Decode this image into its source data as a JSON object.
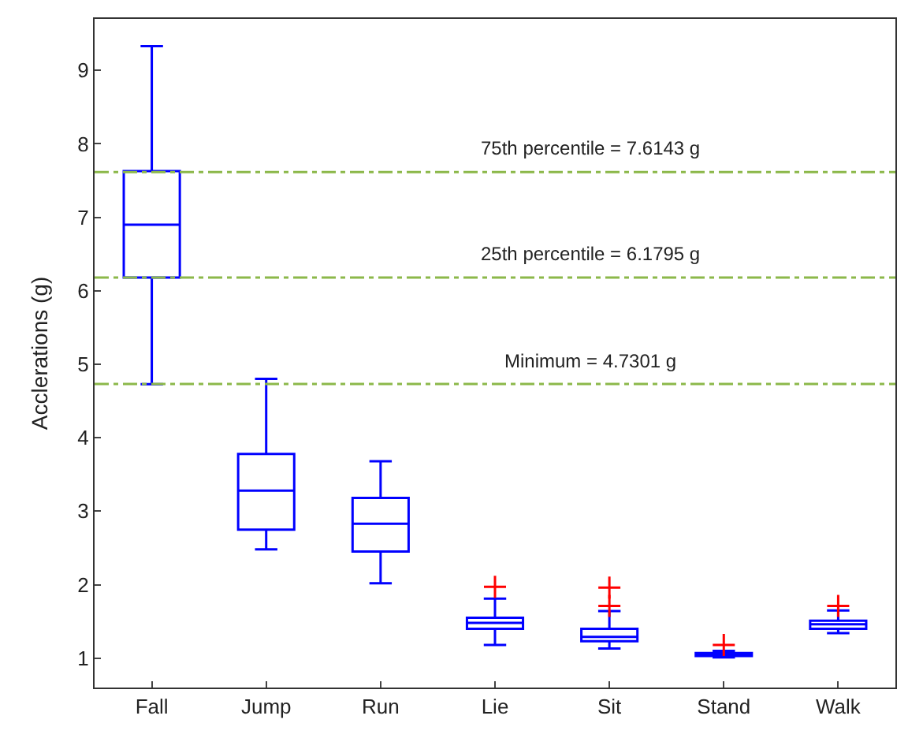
{
  "chart_data": {
    "type": "box",
    "ylabel": "Acclerations (g)",
    "categories": [
      "Fall",
      "Jump",
      "Run",
      "Lie",
      "Sit",
      "Stand",
      "Walk"
    ],
    "boxes": [
      {
        "low": 4.73,
        "q1": 6.18,
        "median": 6.9,
        "q3": 7.63,
        "high": 9.33
      },
      {
        "low": 2.48,
        "q1": 2.75,
        "median": 3.28,
        "q3": 3.78,
        "high": 4.8
      },
      {
        "low": 2.02,
        "q1": 2.45,
        "median": 2.83,
        "q3": 3.18,
        "high": 3.68
      },
      {
        "low": 1.18,
        "q1": 1.4,
        "median": 1.48,
        "q3": 1.55,
        "high": 1.81,
        "outliers": [
          1.97
        ]
      },
      {
        "low": 1.13,
        "q1": 1.23,
        "median": 1.29,
        "q3": 1.4,
        "high": 1.64,
        "outliers": [
          1.71,
          1.96
        ]
      },
      {
        "low": 1.01,
        "q1": 1.03,
        "median": 1.05,
        "q3": 1.07,
        "high": 1.1,
        "outliers": [
          1.18
        ]
      },
      {
        "low": 1.34,
        "q1": 1.4,
        "median": 1.46,
        "q3": 1.51,
        "high": 1.65,
        "outliers": [
          1.71
        ]
      }
    ],
    "color": "#0000ff",
    "marker": "cross",
    "ylim": [
      0.6,
      9.7
    ],
    "yticks": [
      1,
      2,
      3,
      4,
      5,
      6,
      7,
      8,
      9
    ],
    "ref_lines": [
      {
        "axis": "y",
        "value": 7.6143,
        "label": "75th percentile = 7.6143 g",
        "color": "#8cb84a",
        "line_style": "dashed"
      },
      {
        "axis": "y",
        "value": 6.1795,
        "label": "25th percentile = 6.1795 g",
        "color": "#8cb84a",
        "line_style": "dashed"
      },
      {
        "axis": "y",
        "value": 4.7301,
        "label": "Minimum = 4.7301 g",
        "color": "#8cb84a",
        "line_style": "dashed"
      }
    ]
  }
}
